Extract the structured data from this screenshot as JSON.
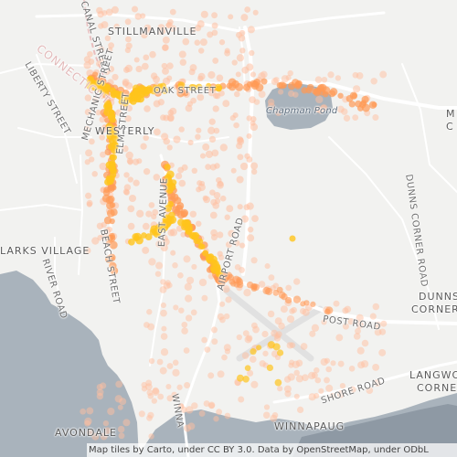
{
  "map": {
    "attribution": "Map tiles by Carto, under CC BY 3.0. Data by OpenStreetMap, under ODbL",
    "state_label": "CONNECTICUT",
    "place_labels": {
      "stillmanville": "STILLMANVILLE",
      "westerly": "WESTERLY",
      "larks_village": "LARKS VILLAGE",
      "avondale": "AVONDALE",
      "winnapaug": "WINNAPAUG",
      "dunns_corner": "DUNNS",
      "dunns_corner_2": "CORNER",
      "langworthy_corner": "LANGWOR",
      "langworthy_corner_2": "CORNE",
      "east_edge_1": "M",
      "east_edge_2": "C"
    },
    "water_labels": {
      "chapman_pond": "Chapman Pond"
    },
    "road_labels": {
      "canal_street": "CANAL STREET",
      "oak_street": "OAK STREET",
      "liberty_street": "LIBERTY STREET",
      "mechanic_street": "MECHANIC STREET",
      "elm_street": "ELM STREET",
      "beach_street": "BEACH STREET",
      "east_avenue": "EAST AVENUE",
      "airport_road": "AIRPORT ROAD",
      "post_road": "POST ROAD",
      "shore_road": "SHORE ROAD",
      "dunns_corner_road": "DUNNS CORNER ROAD",
      "river_road": "RIVER ROAD",
      "winnapaug_road": "WINNA"
    },
    "colors": {
      "land": "#f2f2f0",
      "water": "#a9b3bc",
      "road": "#ffffff",
      "dot_light": "#ffbfa0",
      "dot_mid": "#ff9a56",
      "dot_dense": "#ffc41c"
    }
  }
}
